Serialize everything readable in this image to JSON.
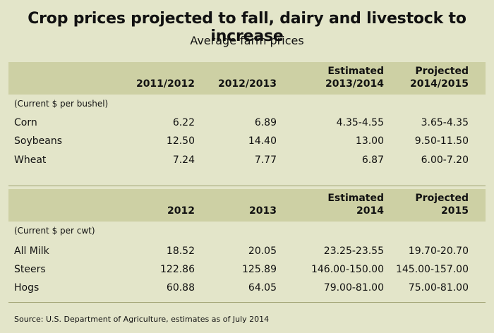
{
  "title": "Crop prices projected to fall, dairy and livestock to increase",
  "subtitle": "Average farm prices",
  "crops": {
    "headers": [
      "2011/2012",
      "2012/2013",
      "Estimated",
      "2013/2014",
      "Projected",
      "2014/2015"
    ],
    "unit": "(Current $ per bushel)",
    "rows": [
      {
        "label": "Corn",
        "v1": "6.22",
        "v2": "6.89",
        "v3": "4.35-4.55",
        "v4": "3.65-4.35"
      },
      {
        "label": "Soybeans",
        "v1": "12.50",
        "v2": "14.40",
        "v3": "13.00",
        "v4": "9.50-11.50"
      },
      {
        "label": "Wheat",
        "v1": "7.24",
        "v2": "7.77",
        "v3": "6.87",
        "v4": "6.00-7.20"
      }
    ]
  },
  "livestock": {
    "headers": [
      "2012",
      "2013",
      "Estimated",
      "2014",
      "Projected",
      "2015"
    ],
    "unit": "(Current $ per cwt)",
    "rows": [
      {
        "label": "All Milk",
        "v1": "18.52",
        "v2": "20.05",
        "v3": "23.25-23.55",
        "v4": "19.70-20.70"
      },
      {
        "label": "Steers",
        "v1": "122.86",
        "v2": "125.89",
        "v3": "146.00-150.00",
        "v4": "145.00-157.00"
      },
      {
        "label": "Hogs",
        "v1": "60.88",
        "v2": "64.05",
        "v3": "79.00-81.00",
        "v4": "75.00-81.00"
      }
    ]
  },
  "source": "Source: U.S. Department of Agriculture, estimates as of July 2014"
}
